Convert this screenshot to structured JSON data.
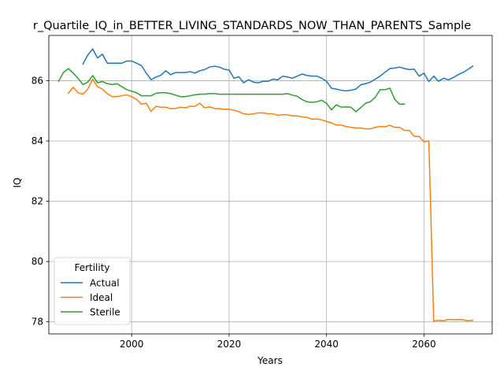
{
  "chart_data": {
    "type": "line",
    "title": "r_Quartile_IQ_in_BETTER_LIVING_STANDARDS_NOW_THAN_PARENTS_Sample",
    "xlabel": "Years",
    "ylabel": "IQ",
    "xlim": [
      1983,
      2074
    ],
    "ylim": [
      77.6,
      87.5
    ],
    "xticks": [
      2000,
      2020,
      2040,
      2060
    ],
    "yticks": [
      78,
      80,
      82,
      84,
      86
    ],
    "grid": true,
    "legend": {
      "title": "Fertility",
      "placement": "lower-left",
      "entries": [
        "Actual",
        "Ideal",
        "Sterile"
      ]
    },
    "series": [
      {
        "name": "Actual",
        "color": "#1f77b4",
        "points": [
          [
            1990,
            86.55
          ],
          [
            1991,
            86.85
          ],
          [
            1992,
            87.05
          ],
          [
            1993,
            86.75
          ],
          [
            1994,
            86.88
          ],
          [
            1995,
            86.58
          ],
          [
            1996,
            86.58
          ],
          [
            1997,
            86.58
          ],
          [
            1998,
            86.58
          ],
          [
            1999,
            86.65
          ],
          [
            2000,
            86.65
          ],
          [
            2001,
            86.58
          ],
          [
            2002,
            86.5
          ],
          [
            2003,
            86.25
          ],
          [
            2004,
            86.03
          ],
          [
            2005,
            86.12
          ],
          [
            2006,
            86.18
          ],
          [
            2007,
            86.33
          ],
          [
            2008,
            86.2
          ],
          [
            2009,
            86.27
          ],
          [
            2010,
            86.27
          ],
          [
            2011,
            86.27
          ],
          [
            2012,
            86.3
          ],
          [
            2013,
            86.25
          ],
          [
            2014,
            86.33
          ],
          [
            2015,
            86.37
          ],
          [
            2016,
            86.45
          ],
          [
            2017,
            86.48
          ],
          [
            2018,
            86.45
          ],
          [
            2019,
            86.38
          ],
          [
            2020,
            86.35
          ],
          [
            2021,
            86.08
          ],
          [
            2022,
            86.13
          ],
          [
            2023,
            85.93
          ],
          [
            2024,
            86.03
          ],
          [
            2025,
            85.95
          ],
          [
            2026,
            85.93
          ],
          [
            2027,
            85.98
          ],
          [
            2028,
            85.98
          ],
          [
            2029,
            86.05
          ],
          [
            2030,
            86.03
          ],
          [
            2031,
            86.15
          ],
          [
            2032,
            86.12
          ],
          [
            2033,
            86.08
          ],
          [
            2034,
            86.15
          ],
          [
            2035,
            86.22
          ],
          [
            2036,
            86.17
          ],
          [
            2037,
            86.15
          ],
          [
            2038,
            86.15
          ],
          [
            2039,
            86.08
          ],
          [
            2040,
            85.98
          ],
          [
            2041,
            85.75
          ],
          [
            2042,
            85.72
          ],
          [
            2043,
            85.68
          ],
          [
            2044,
            85.66
          ],
          [
            2045,
            85.68
          ],
          [
            2046,
            85.72
          ],
          [
            2047,
            85.86
          ],
          [
            2048,
            85.9
          ],
          [
            2049,
            85.95
          ],
          [
            2050,
            86.05
          ],
          [
            2051,
            86.15
          ],
          [
            2052,
            86.28
          ],
          [
            2053,
            86.4
          ],
          [
            2054,
            86.42
          ],
          [
            2055,
            86.45
          ],
          [
            2056,
            86.4
          ],
          [
            2057,
            86.37
          ],
          [
            2058,
            86.38
          ],
          [
            2059,
            86.15
          ],
          [
            2060,
            86.25
          ],
          [
            2061,
            85.97
          ],
          [
            2062,
            86.15
          ],
          [
            2063,
            85.98
          ],
          [
            2064,
            86.08
          ],
          [
            2065,
            86.03
          ],
          [
            2066,
            86.1
          ],
          [
            2067,
            86.2
          ],
          [
            2068,
            86.27
          ],
          [
            2069,
            86.37
          ],
          [
            2070,
            86.48
          ]
        ]
      },
      {
        "name": "Ideal",
        "color": "#ff7f0e",
        "points": [
          [
            1987,
            85.58
          ],
          [
            1988,
            85.78
          ],
          [
            1989,
            85.6
          ],
          [
            1990,
            85.55
          ],
          [
            1991,
            85.72
          ],
          [
            1992,
            86.05
          ],
          [
            1993,
            85.8
          ],
          [
            1994,
            85.72
          ],
          [
            1995,
            85.57
          ],
          [
            1996,
            85.47
          ],
          [
            1997,
            85.47
          ],
          [
            1998,
            85.5
          ],
          [
            1999,
            85.53
          ],
          [
            2000,
            85.47
          ],
          [
            2001,
            85.38
          ],
          [
            2002,
            85.22
          ],
          [
            2003,
            85.25
          ],
          [
            2004,
            84.98
          ],
          [
            2005,
            85.15
          ],
          [
            2006,
            85.12
          ],
          [
            2007,
            85.12
          ],
          [
            2008,
            85.07
          ],
          [
            2009,
            85.08
          ],
          [
            2010,
            85.12
          ],
          [
            2011,
            85.1
          ],
          [
            2012,
            85.15
          ],
          [
            2013,
            85.15
          ],
          [
            2014,
            85.25
          ],
          [
            2015,
            85.1
          ],
          [
            2016,
            85.13
          ],
          [
            2017,
            85.08
          ],
          [
            2018,
            85.07
          ],
          [
            2019,
            85.05
          ],
          [
            2020,
            85.05
          ],
          [
            2021,
            85.02
          ],
          [
            2022,
            84.97
          ],
          [
            2023,
            84.9
          ],
          [
            2024,
            84.88
          ],
          [
            2025,
            84.9
          ],
          [
            2026,
            84.93
          ],
          [
            2027,
            84.93
          ],
          [
            2028,
            84.9
          ],
          [
            2029,
            84.9
          ],
          [
            2030,
            84.85
          ],
          [
            2031,
            84.87
          ],
          [
            2032,
            84.87
          ],
          [
            2033,
            84.83
          ],
          [
            2034,
            84.83
          ],
          [
            2035,
            84.8
          ],
          [
            2036,
            84.78
          ],
          [
            2037,
            84.72
          ],
          [
            2038,
            84.73
          ],
          [
            2039,
            84.7
          ],
          [
            2040,
            84.65
          ],
          [
            2041,
            84.6
          ],
          [
            2042,
            84.53
          ],
          [
            2043,
            84.53
          ],
          [
            2044,
            84.48
          ],
          [
            2045,
            84.45
          ],
          [
            2046,
            84.43
          ],
          [
            2047,
            84.43
          ],
          [
            2048,
            84.4
          ],
          [
            2049,
            84.4
          ],
          [
            2050,
            84.45
          ],
          [
            2051,
            84.48
          ],
          [
            2052,
            84.47
          ],
          [
            2053,
            84.52
          ],
          [
            2054,
            84.45
          ],
          [
            2055,
            84.45
          ],
          [
            2056,
            84.35
          ],
          [
            2057,
            84.35
          ],
          [
            2058,
            84.15
          ],
          [
            2059,
            84.15
          ],
          [
            2060,
            83.97
          ],
          [
            2061,
            84.0
          ],
          [
            2062,
            78.02
          ],
          [
            2063,
            78.05
          ],
          [
            2064,
            78.03
          ],
          [
            2065,
            78.08
          ],
          [
            2066,
            78.07
          ],
          [
            2067,
            78.08
          ],
          [
            2068,
            78.07
          ],
          [
            2069,
            78.03
          ],
          [
            2070,
            78.05
          ]
        ]
      },
      {
        "name": "Sterile",
        "color": "#2ca02c",
        "points": [
          [
            1985,
            85.98
          ],
          [
            1986,
            86.27
          ],
          [
            1987,
            86.4
          ],
          [
            1988,
            86.25
          ],
          [
            1989,
            86.08
          ],
          [
            1990,
            85.87
          ],
          [
            1991,
            85.95
          ],
          [
            1992,
            86.17
          ],
          [
            1993,
            85.93
          ],
          [
            1994,
            85.97
          ],
          [
            1995,
            85.9
          ],
          [
            1996,
            85.87
          ],
          [
            1997,
            85.9
          ],
          [
            1998,
            85.8
          ],
          [
            1999,
            85.7
          ],
          [
            2000,
            85.65
          ],
          [
            2001,
            85.6
          ],
          [
            2002,
            85.5
          ],
          [
            2003,
            85.5
          ],
          [
            2004,
            85.5
          ],
          [
            2005,
            85.58
          ],
          [
            2006,
            85.6
          ],
          [
            2007,
            85.6
          ],
          [
            2008,
            85.57
          ],
          [
            2009,
            85.52
          ],
          [
            2010,
            85.47
          ],
          [
            2011,
            85.47
          ],
          [
            2012,
            85.5
          ],
          [
            2013,
            85.53
          ],
          [
            2014,
            85.55
          ],
          [
            2015,
            85.55
          ],
          [
            2016,
            85.57
          ],
          [
            2017,
            85.57
          ],
          [
            2018,
            85.55
          ],
          [
            2019,
            85.55
          ],
          [
            2020,
            85.55
          ],
          [
            2021,
            85.55
          ],
          [
            2022,
            85.55
          ],
          [
            2023,
            85.55
          ],
          [
            2024,
            85.55
          ],
          [
            2025,
            85.55
          ],
          [
            2026,
            85.55
          ],
          [
            2027,
            85.55
          ],
          [
            2028,
            85.55
          ],
          [
            2029,
            85.55
          ],
          [
            2030,
            85.55
          ],
          [
            2031,
            85.55
          ],
          [
            2032,
            85.57
          ],
          [
            2033,
            85.52
          ],
          [
            2034,
            85.48
          ],
          [
            2035,
            85.37
          ],
          [
            2036,
            85.3
          ],
          [
            2037,
            85.28
          ],
          [
            2038,
            85.3
          ],
          [
            2039,
            85.35
          ],
          [
            2040,
            85.25
          ],
          [
            2041,
            85.03
          ],
          [
            2042,
            85.2
          ],
          [
            2043,
            85.12
          ],
          [
            2044,
            85.13
          ],
          [
            2045,
            85.12
          ],
          [
            2046,
            84.97
          ],
          [
            2047,
            85.1
          ],
          [
            2048,
            85.25
          ],
          [
            2049,
            85.3
          ],
          [
            2050,
            85.45
          ],
          [
            2051,
            85.7
          ],
          [
            2052,
            85.7
          ],
          [
            2053,
            85.75
          ],
          [
            2054,
            85.38
          ],
          [
            2055,
            85.22
          ],
          [
            2056,
            85.22
          ]
        ]
      }
    ]
  }
}
